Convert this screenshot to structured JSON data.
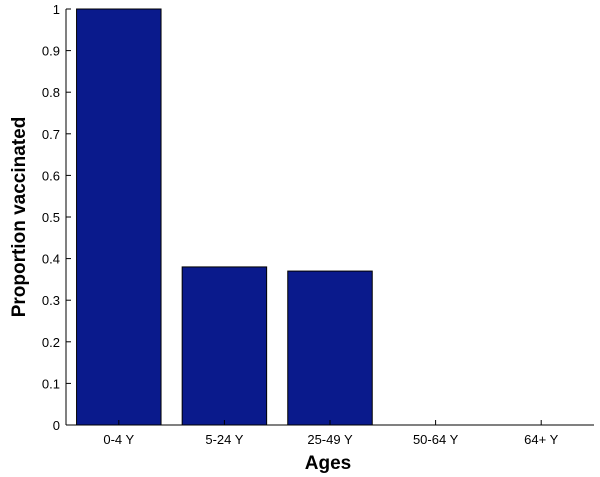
{
  "chart_data": {
    "type": "bar",
    "categories": [
      "0-4 Y",
      "5-24 Y",
      "25-49 Y",
      "50-64 Y",
      "64+ Y"
    ],
    "values": [
      1.0,
      0.38,
      0.37,
      0,
      0
    ],
    "xlabel": "Ages",
    "ylabel": "Proportion vaccinated",
    "ylim": [
      0,
      1
    ],
    "yticks": [
      0,
      0.1,
      0.2,
      0.3,
      0.4,
      0.5,
      0.6,
      0.7,
      0.8,
      0.9,
      1
    ],
    "ytick_labels": [
      "0",
      "0.1",
      "0.2",
      "0.3",
      "0.4",
      "0.5",
      "0.6",
      "0.7",
      "0.8",
      "0.9",
      "1"
    ],
    "bar_color": "#0a1a8c",
    "bar_edge_color": "#000000",
    "grid": false,
    "legend": "none"
  }
}
